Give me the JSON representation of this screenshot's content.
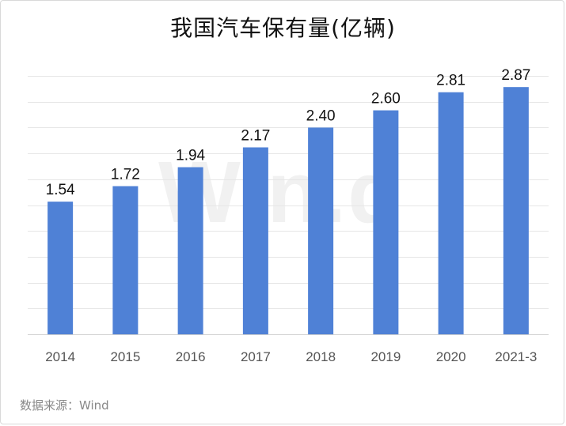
{
  "chart_data": {
    "type": "bar",
    "title": "我国汽车保有量(亿辆)",
    "xlabel": "",
    "ylabel": "",
    "categories": [
      "2014",
      "2015",
      "2016",
      "2017",
      "2018",
      "2019",
      "2020",
      "2021-3"
    ],
    "values": [
      1.54,
      1.72,
      1.94,
      2.17,
      2.4,
      2.6,
      2.81,
      2.87
    ],
    "data_labels": [
      "1.54",
      "1.72",
      "1.94",
      "2.17",
      "2.40",
      "2.60",
      "2.81",
      "2.87"
    ],
    "ylim": [
      0,
      3.0
    ],
    "grid": true,
    "legend": "none",
    "bar_color": "#4f81d6"
  },
  "source": "数据来源：Wind",
  "watermark": "Wind"
}
